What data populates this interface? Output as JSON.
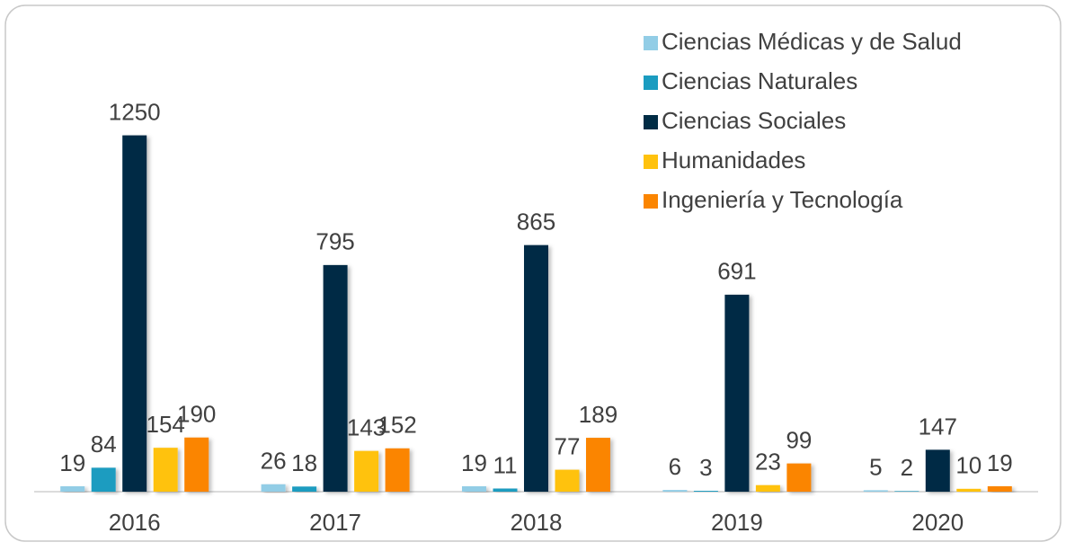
{
  "chart_data": {
    "type": "bar",
    "categories": [
      "2016",
      "2017",
      "2018",
      "2019",
      "2020"
    ],
    "series": [
      {
        "name": "Ciencias Médicas y de Salud",
        "color": "#92cde6",
        "values": [
          19,
          26,
          19,
          6,
          5
        ]
      },
      {
        "name": "Ciencias Naturales",
        "color": "#1b9cc0",
        "values": [
          84,
          18,
          11,
          3,
          2
        ]
      },
      {
        "name": "Ciencias Sociales",
        "color": "#002c45",
        "values": [
          1250,
          795,
          865,
          691,
          147
        ]
      },
      {
        "name": "Humanidades",
        "color": "#ffc20e",
        "values": [
          154,
          143,
          77,
          23,
          10
        ]
      },
      {
        "name": "Ingeniería y Tecnología",
        "color": "#fb8500",
        "values": [
          190,
          152,
          189,
          99,
          19
        ]
      }
    ],
    "ylim": [
      0,
      1400
    ],
    "legend": "top-right"
  }
}
